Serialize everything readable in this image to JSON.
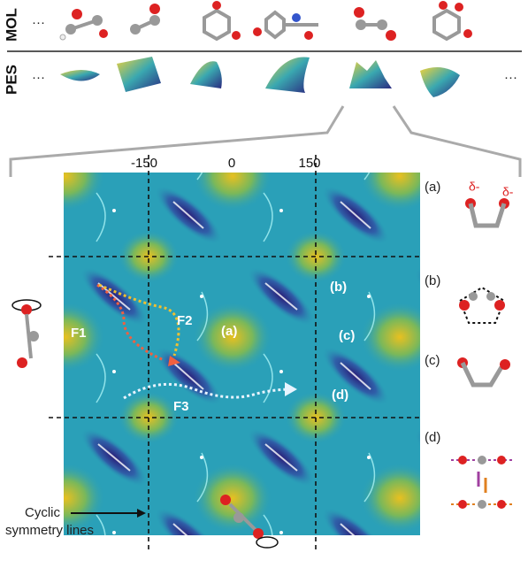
{
  "rows": [
    {
      "label": "MOL",
      "lead": "···"
    },
    {
      "label": "PES",
      "lead": "···",
      "trail": "···"
    }
  ],
  "axis_ticks": [
    "-150",
    "0",
    "150"
  ],
  "map_labels": [
    "(a)",
    "(b)",
    "(c)",
    "(d)"
  ],
  "paths": [
    "F1",
    "F2",
    "F3"
  ],
  "side_panels": [
    {
      "label": "(a)",
      "charges": [
        "δ-",
        "δ-"
      ]
    },
    {
      "label": "(b)"
    },
    {
      "label": "(c)"
    },
    {
      "label": "(d)"
    }
  ],
  "annotation": [
    "Cyclic",
    "symmetry lines"
  ]
}
